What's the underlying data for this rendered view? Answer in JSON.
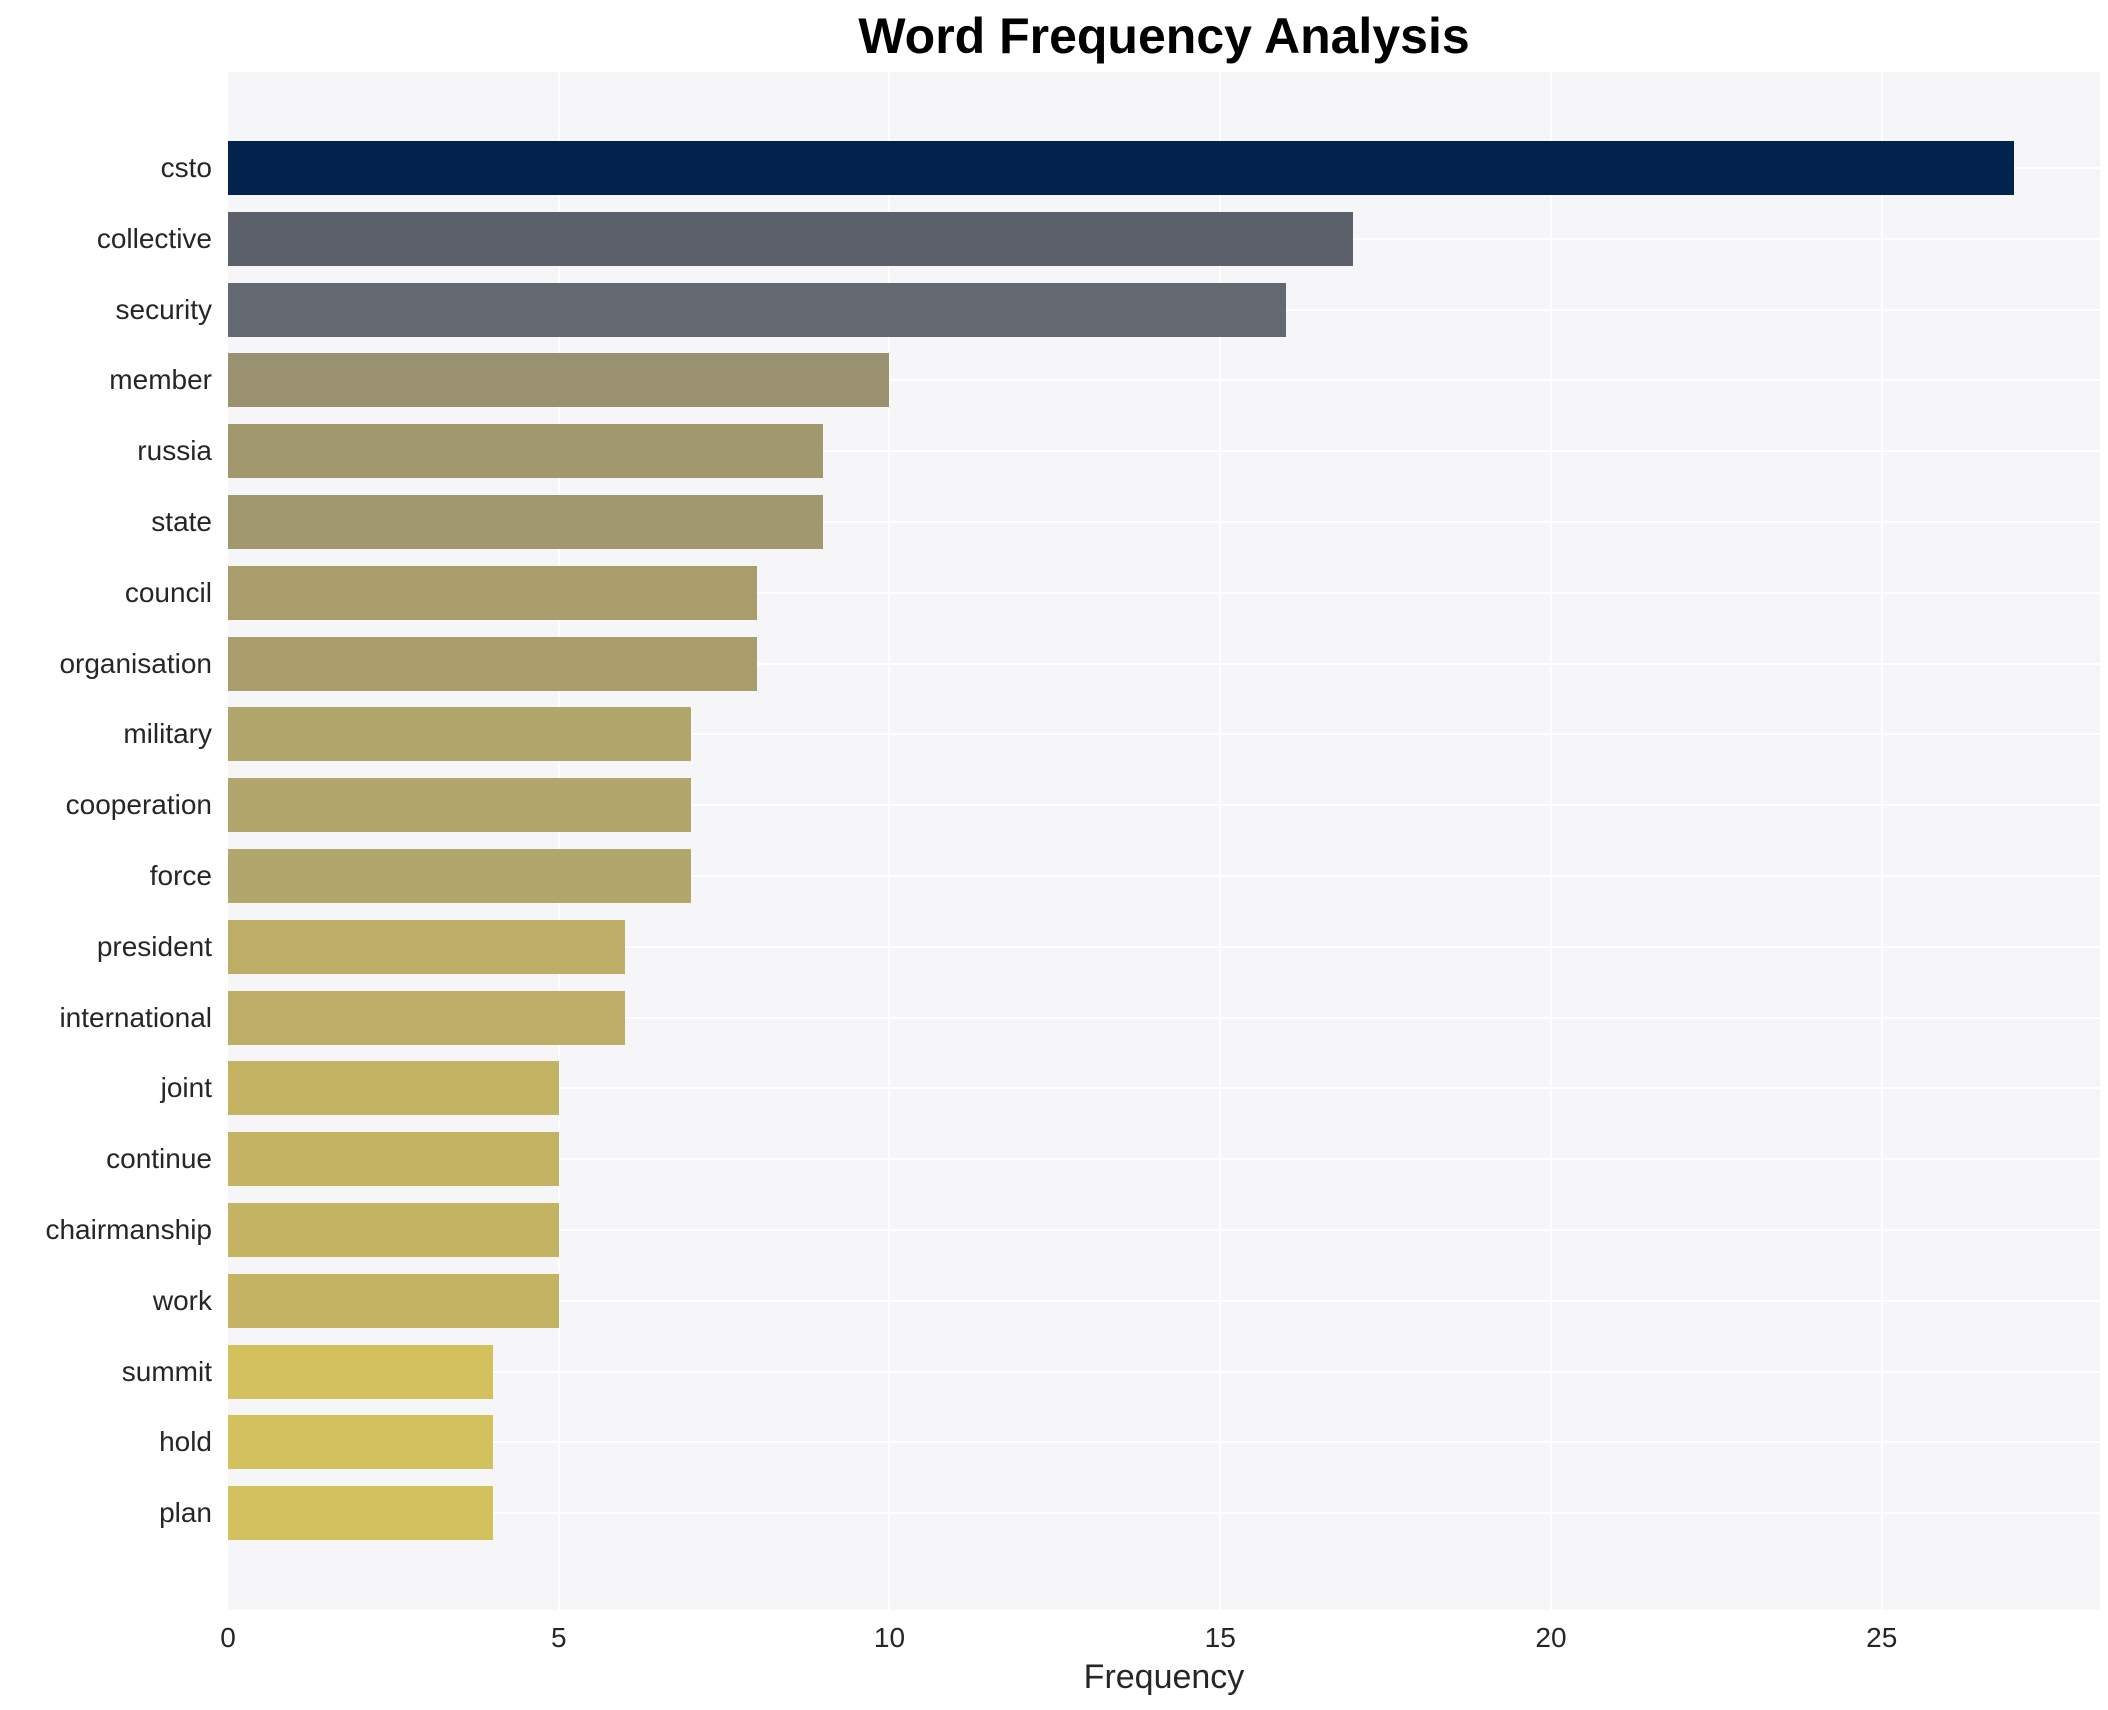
{
  "chart_data": {
    "type": "bar",
    "orientation": "horizontal",
    "title": "Word Frequency Analysis",
    "xlabel": "Frequency",
    "categories": [
      "csto",
      "collective",
      "security",
      "member",
      "russia",
      "state",
      "council",
      "organisation",
      "military",
      "cooperation",
      "force",
      "president",
      "international",
      "joint",
      "continue",
      "chairmanship",
      "work",
      "summit",
      "hold",
      "plan"
    ],
    "values": [
      27,
      17,
      16,
      10,
      9,
      9,
      8,
      8,
      7,
      7,
      7,
      6,
      6,
      5,
      5,
      5,
      5,
      4,
      4,
      4
    ],
    "bar_colors": [
      "#03234f",
      "#5d616c",
      "#646871",
      "#9a9170",
      "#a2986e",
      "#a2986e",
      "#a89d6b",
      "#a89d6b",
      "#b1a66b",
      "#b1a66b",
      "#b1a66b",
      "#bcae66",
      "#bcae66",
      "#c3b363",
      "#c3b363",
      "#c3b363",
      "#c3b363",
      "#d2c15c",
      "#d2c15c",
      "#d2c15c"
    ],
    "xticks": [
      0,
      5,
      10,
      15,
      20,
      25
    ],
    "xlim": [
      0,
      28.3
    ],
    "grid_on": true,
    "panel_background": "#f6f6f8",
    "gridline_color": "#ffffff",
    "legend": "none"
  }
}
